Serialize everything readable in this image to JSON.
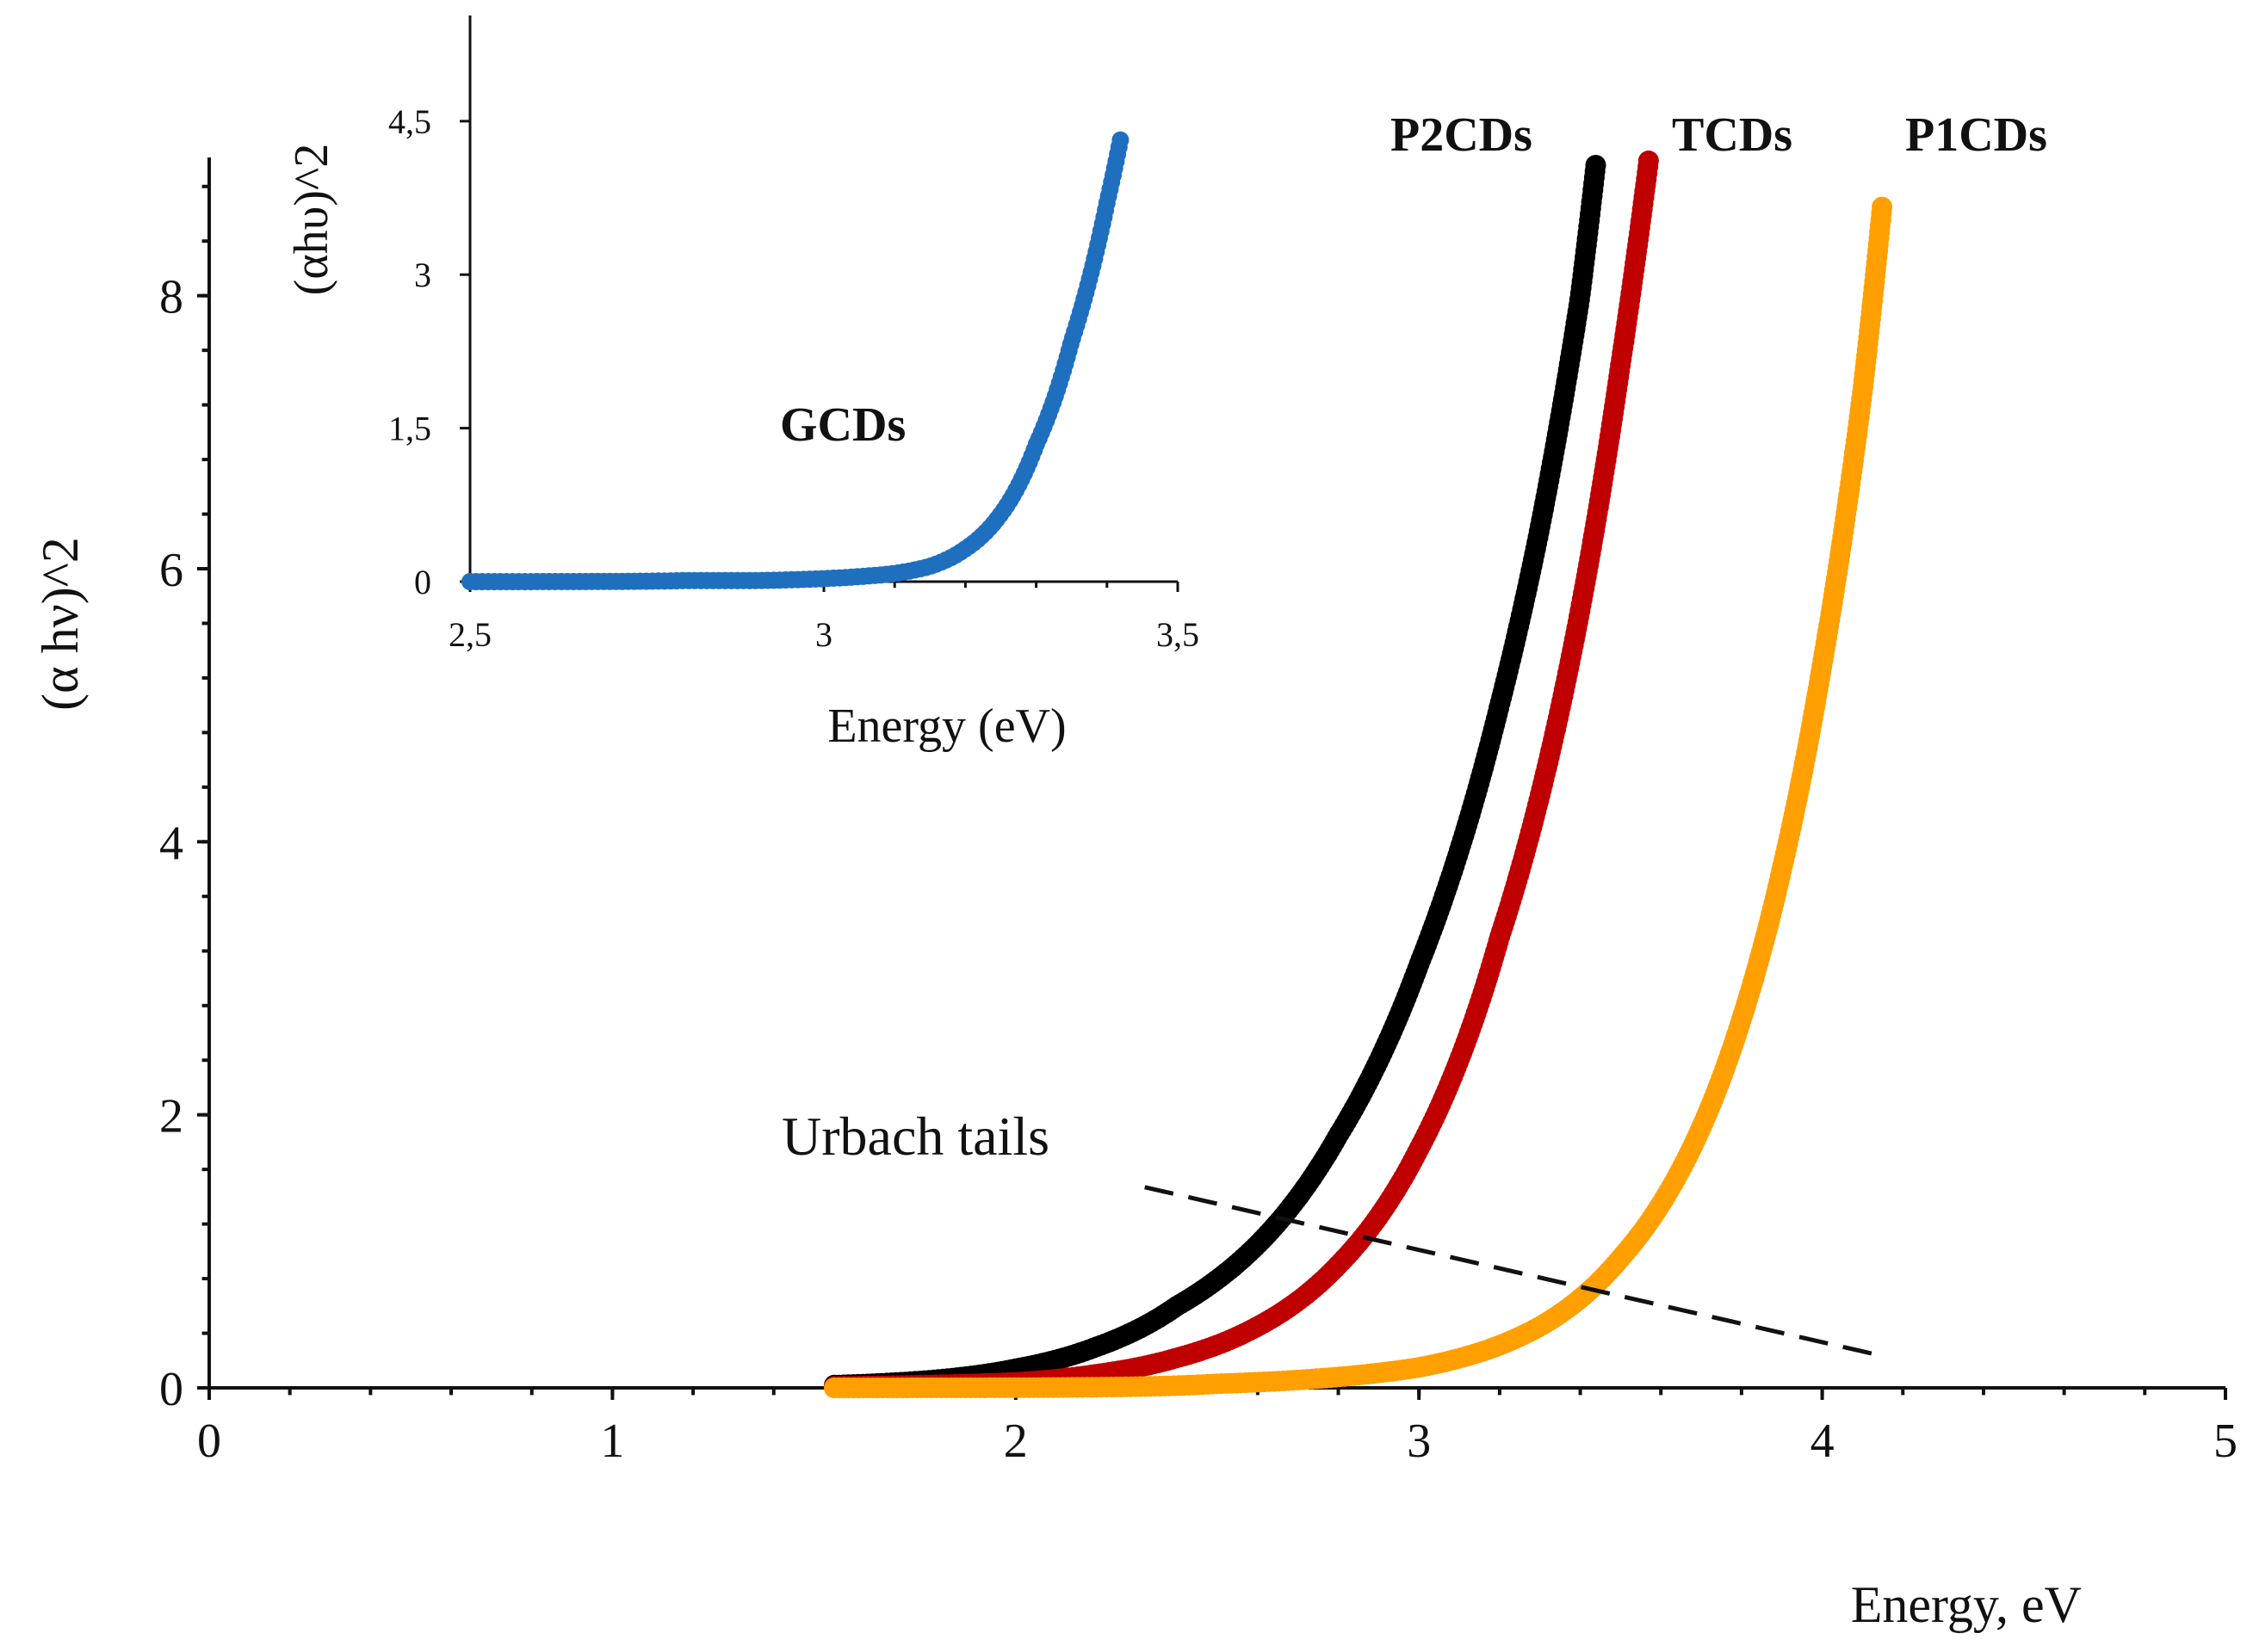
{
  "chart_data": [
    {
      "type": "scatter",
      "role": "main",
      "title": "",
      "xlabel": "Energy, eV",
      "ylabel": "(α hν)^2",
      "xlim": [
        0,
        5
      ],
      "ylim": [
        0,
        9
      ],
      "x_ticks": [
        0,
        1,
        2,
        3,
        4,
        5
      ],
      "x_tick_labels": [
        "0",
        "1",
        "2",
        "3",
        "4",
        "5"
      ],
      "y_ticks": [
        0,
        2,
        4,
        6,
        8
      ],
      "y_tick_labels": [
        "0",
        "2",
        "4",
        "6",
        "8"
      ],
      "grid": false,
      "series": [
        {
          "name": "P2CDs",
          "label": "P2CDs",
          "color": "#000000",
          "model": "exponential",
          "x": [
            1.55,
            2.0,
            2.2,
            2.4,
            2.6,
            2.8,
            3.0,
            3.2,
            3.3,
            3.4,
            3.44
          ],
          "y": [
            0.02,
            0.14,
            0.3,
            0.6,
            1.05,
            1.85,
            3.1,
            5.0,
            6.3,
            8.0,
            9.0
          ]
        },
        {
          "name": "TCDs",
          "label": "TCDs",
          "color": "#c00000",
          "model": "exponential",
          "x": [
            1.55,
            2.0,
            2.2,
            2.4,
            2.6,
            2.8,
            3.0,
            3.2,
            3.4,
            3.5,
            3.57
          ],
          "y": [
            0.01,
            0.04,
            0.1,
            0.22,
            0.45,
            0.9,
            1.75,
            3.3,
            5.7,
            7.5,
            9.0
          ]
        },
        {
          "name": "P1CDs",
          "label": "P1CDs",
          "color": "#ffa000",
          "model": "exponential",
          "x": [
            1.55,
            2.5,
            2.8,
            3.0,
            3.3,
            3.5,
            3.8,
            3.9,
            4.0,
            4.1,
            4.15
          ],
          "y": [
            0.0,
            0.03,
            0.08,
            0.15,
            0.45,
            0.95,
            2.7,
            3.8,
            5.3,
            7.3,
            8.7
          ]
        }
      ],
      "annotations": [
        {
          "text": "Urbach tails",
          "line_from": [
            2.32,
            1.47
          ],
          "line_to": [
            4.14,
            0.24
          ],
          "line_style": "dashed"
        }
      ]
    },
    {
      "type": "scatter",
      "role": "inset",
      "title": "",
      "xlabel": "Energy  (eV)",
      "ylabel": "(αhυ)^2",
      "xlim": [
        2.5,
        3.5
      ],
      "ylim": [
        0,
        5.6
      ],
      "x_ticks": [
        2.5,
        3,
        3.5
      ],
      "x_tick_labels": [
        "2,5",
        "3",
        "3,5"
      ],
      "y_ticks": [
        0,
        1.5,
        3,
        4.5
      ],
      "y_tick_labels": [
        "0",
        "1,5",
        "3",
        "4,5"
      ],
      "grid": false,
      "series": [
        {
          "name": "GCDs",
          "label": "GCDs",
          "color": "#1f6fbf",
          "model": "exponential",
          "x": [
            2.5,
            2.8,
            2.9,
            3.0,
            3.1,
            3.15,
            3.2,
            3.25,
            3.3,
            3.35,
            3.4,
            3.42
          ],
          "y": [
            0.0,
            0.01,
            0.01,
            0.03,
            0.08,
            0.15,
            0.32,
            0.66,
            1.34,
            2.35,
            3.7,
            4.35
          ]
        }
      ]
    }
  ]
}
